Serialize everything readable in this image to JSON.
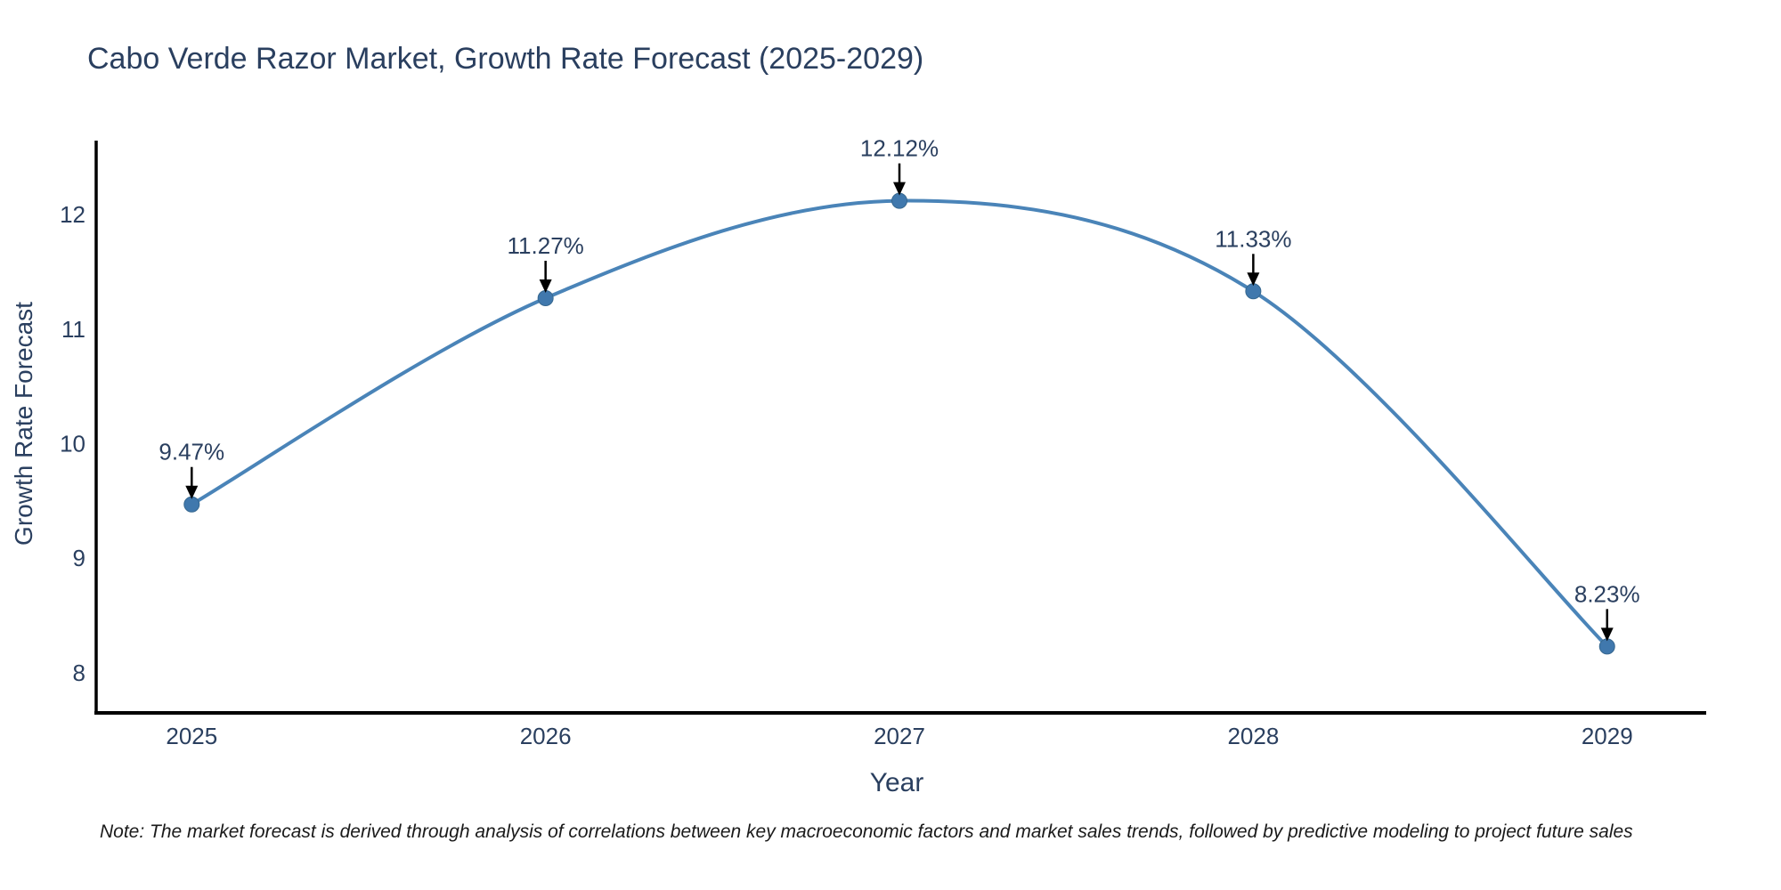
{
  "page": {
    "background": "#ffffff"
  },
  "note": {
    "text": "Note: The market forecast is derived through analysis of correlations between key macroeconomic factors and market sales trends, followed by predictive modeling to project future sales"
  },
  "chart_data": {
    "type": "line",
    "title": "Cabo Verde Razor Market, Growth Rate Forecast (2025-2029)",
    "xlabel": "Year",
    "ylabel": "Growth Rate Forecast",
    "x": [
      2025,
      2026,
      2027,
      2028,
      2029
    ],
    "x_tick_labels": [
      "2025",
      "2026",
      "2027",
      "2028",
      "2029"
    ],
    "series": [
      {
        "name": "Growth Rate Forecast",
        "values": [
          9.47,
          11.27,
          12.12,
          11.33,
          8.23
        ]
      }
    ],
    "point_labels": [
      "9.47%",
      "11.27%",
      "12.12%",
      "11.33%",
      "8.23%"
    ],
    "yticks": [
      8,
      9,
      10,
      11,
      12
    ],
    "ylim": [
      7.65,
      12.645
    ],
    "xlim": [
      2024.73,
      2029.28
    ],
    "line_shape": "spline",
    "grid": false,
    "legend": "none",
    "colors": {
      "line": "#4a84b8",
      "marker": "#4078ad",
      "marker_edge": "#36678f",
      "axis": "#000000",
      "text": "#2a3f5f",
      "annotation_arrow": "#000000",
      "note": "#1a1a1a"
    }
  }
}
